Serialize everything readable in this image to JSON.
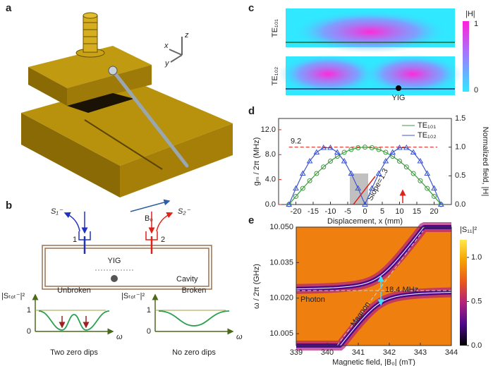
{
  "panel_a": {
    "label": "a",
    "axes": [
      "x",
      "y",
      "z"
    ],
    "field": "B₀"
  },
  "panel_b": {
    "label": "b",
    "ports": [
      "S₁⁻",
      "S₂⁻"
    ],
    "port_numbers": [
      "1",
      "2"
    ],
    "yig": "YIG",
    "cavity": "Cavity",
    "plots": [
      {
        "title": "Unbroken",
        "ylabel": "|Sₜₒₜ⁻|²",
        "yticks": [
          "1",
          "0"
        ],
        "xlabel": "ω",
        "note": "Two zero dips"
      },
      {
        "title": "Broken",
        "ylabel": "|Sₜₒₜ⁻|²",
        "yticks": [
          "1",
          "0"
        ],
        "xlabel": "ω",
        "note": "No zero dips"
      }
    ]
  },
  "panel_c": {
    "label": "c",
    "modes": [
      "TE₁₀₁",
      "TE₁₀₂"
    ],
    "yig": "YIG",
    "colorbar_label": "|H|",
    "colorbar_ticks": [
      "1",
      "0"
    ]
  },
  "chart_data": [
    {
      "type": "line",
      "panel_label": "d",
      "xlabel": "Displacement, x (mm)",
      "ylabel": "gₘ / 2π (MHz)",
      "y2label": "Normalized field, |H|",
      "x": [
        -22,
        -20,
        -18,
        -16,
        -14,
        -12,
        -10,
        -8,
        -6,
        -4,
        -2,
        0,
        2,
        4,
        6,
        8,
        10,
        12,
        14,
        16,
        18,
        20,
        22
      ],
      "xlim": [
        -25,
        25
      ],
      "xticks": [
        -20,
        -15,
        -10,
        -5,
        0,
        5,
        10,
        15,
        20
      ],
      "ylim": [
        0,
        13.8
      ],
      "yticks": [
        {
          "value": 0,
          "label": "0.0"
        },
        {
          "value": 4,
          "label": "4.0"
        },
        {
          "value": 8,
          "label": "8.0"
        },
        {
          "value": 12,
          "label": "12.0"
        }
      ],
      "y2lim": [
        0,
        1.5
      ],
      "y2ticks": [
        {
          "value": 0,
          "label": "0.0"
        },
        {
          "value": 0.5,
          "label": "0.5"
        },
        {
          "value": 1,
          "label": "1.0"
        },
        {
          "value": 1.5,
          "label": "1.5"
        }
      ],
      "series": [
        {
          "name": "TE₁₀₁",
          "color": "#3c9a3c",
          "marker": "circle",
          "axis": "y2",
          "values": [
            0,
            0.142,
            0.282,
            0.415,
            0.541,
            0.655,
            0.756,
            0.841,
            0.91,
            0.959,
            0.99,
            1,
            0.99,
            0.959,
            0.91,
            0.841,
            0.756,
            0.655,
            0.541,
            0.415,
            0.282,
            0.142,
            0
          ]
        },
        {
          "name": "TE₁₀₂",
          "color": "#3b55d0",
          "marker": "triangle",
          "axis": "y2",
          "values": [
            0,
            0.282,
            0.541,
            0.756,
            0.91,
            0.99,
            0.99,
            0.91,
            0.756,
            0.541,
            0.282,
            0,
            0.282,
            0.541,
            0.756,
            0.91,
            0.99,
            0.99,
            0.91,
            0.756,
            0.541,
            0.282,
            0
          ]
        }
      ],
      "reference_line": 9.2,
      "annotation": "Slope=1.3",
      "legend": "upper right",
      "axis_color": "#e0201a"
    },
    {
      "type": "heatmap",
      "panel_label": "e",
      "xlabel": "Magnetic field, |B₀| (mT)",
      "ylabel": "ω / 2π (GHz)",
      "xlim": [
        339,
        344
      ],
      "xticks": [
        339,
        340,
        341,
        342,
        343,
        344
      ],
      "ylim": [
        10,
        10.05
      ],
      "yticks": [
        10.005,
        {
          "value": 10.02,
          "label": "10.020"
        },
        10.035,
        {
          "value": 10.05,
          "label": "10.050"
        }
      ],
      "colorbar_label": "|S₁₁|²",
      "zlim": [
        0,
        1.2
      ],
      "zticks": [
        {
          "value": 0,
          "label": "0.0"
        },
        0.5,
        {
          "value": 1,
          "label": "1.0"
        }
      ],
      "colors": [
        "#000000",
        "#4a0a8a",
        "#b0207e",
        "#e8561e",
        "#f5a000",
        "#ffe84a"
      ],
      "annotations": [
        "18.4 MHz",
        "Photon",
        "Magnon"
      ]
    }
  ]
}
